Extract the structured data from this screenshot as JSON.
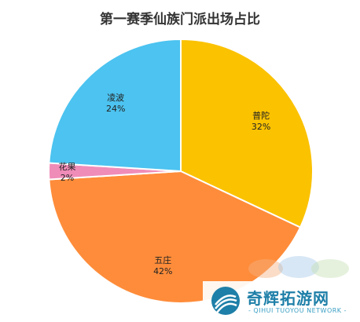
{
  "chart_data": {
    "type": "pie",
    "title": "第一赛季仙族门派出场占比",
    "slices": [
      {
        "label": "普陀",
        "value_label": "32%",
        "value": 32,
        "color": "#FBC200"
      },
      {
        "label": "五庄",
        "value_label": "42%",
        "value": 42,
        "color": "#FF8C3A"
      },
      {
        "label": "花果",
        "value_label": "2%",
        "value": 2,
        "color": "#F08CB8"
      },
      {
        "label": "凌波",
        "value_label": "24%",
        "value": 24,
        "color": "#4CC3F0"
      }
    ],
    "start_angle_deg": 0,
    "direction": "clockwise"
  },
  "watermark": {
    "name": "奇辉拓游网",
    "subtitle": "- QIHUI TUOYOU NETWORK -",
    "color": "#1e7fa8"
  }
}
